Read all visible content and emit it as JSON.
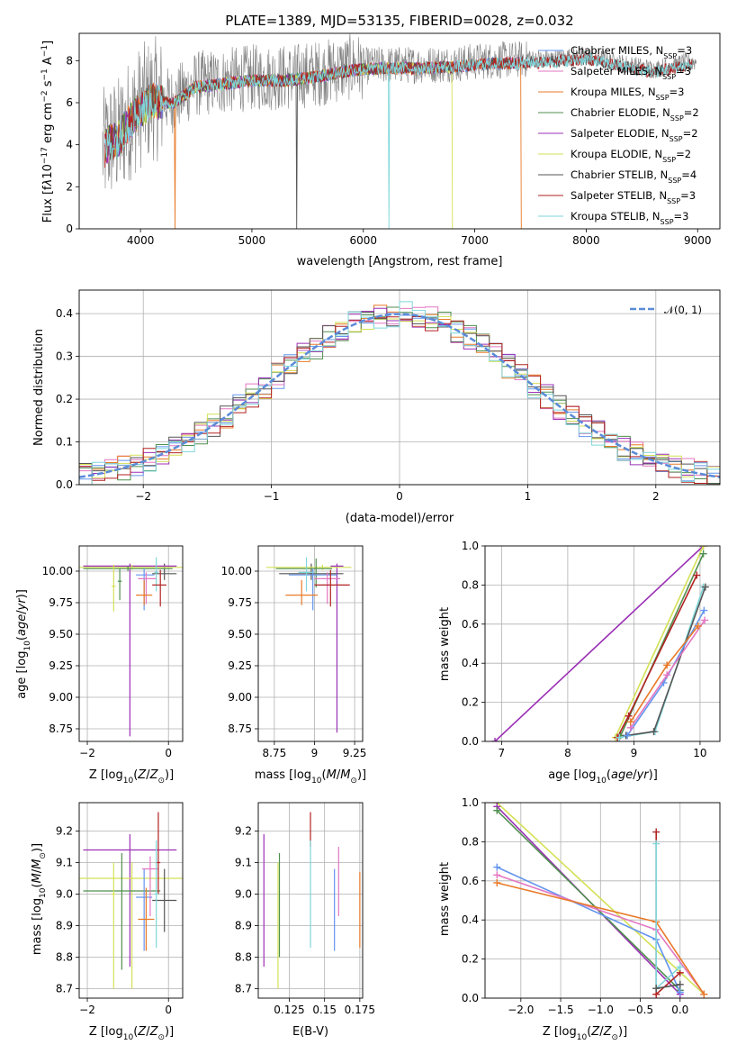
{
  "colors": {
    "chabrier_miles": "#6495ed",
    "salpeter_miles": "#e377c2",
    "kroupa_miles": "#e87a28",
    "chabrier_elodie": "#4f8f4f",
    "salpeter_elodie": "#9b30b5",
    "kroupa_elodie": "#d4e157",
    "chabrier_stelib": "#555555",
    "salpeter_stelib": "#b22222",
    "kroupa_stelib": "#7fd6da",
    "normal": "#5b8bd8",
    "data": "#808080"
  },
  "chart_data": [
    {
      "id": "spectrum",
      "type": "line",
      "title": "PLATE=1389, MJD=53135, FIBERID=0028, z=0.032",
      "xlabel": "wavelength [Angstrom, rest frame]",
      "ylabel": "Flux [f_λ 10^-17 erg cm^-2 s^-1 A^-1]",
      "xlim": [
        3450,
        9200
      ],
      "ylim": [
        0,
        9.3
      ],
      "xticks": [
        4000,
        5000,
        6000,
        7000,
        8000,
        9000
      ],
      "yticks": [
        0,
        2,
        4,
        6,
        8
      ],
      "grid": false,
      "legend_position": "top-right",
      "continuum": [
        [
          3650,
          3.6
        ],
        [
          3720,
          4.2
        ],
        [
          3800,
          4.3
        ],
        [
          3900,
          5.2
        ],
        [
          4000,
          5.8
        ],
        [
          4100,
          6.2
        ],
        [
          4300,
          6.1
        ],
        [
          4500,
          6.9
        ],
        [
          4700,
          7.0
        ],
        [
          5000,
          7.2
        ],
        [
          5300,
          7.2
        ],
        [
          5600,
          7.4
        ],
        [
          5900,
          7.7
        ],
        [
          6200,
          7.8
        ],
        [
          6500,
          7.8
        ],
        [
          6800,
          7.85
        ],
        [
          7100,
          8.0
        ],
        [
          7400,
          8.05
        ],
        [
          7700,
          8.1
        ],
        [
          8000,
          8.25
        ],
        [
          8300,
          7.9
        ],
        [
          8600,
          7.6
        ],
        [
          8800,
          7.8
        ],
        [
          8900,
          7.95
        ]
      ],
      "series": [
        {
          "key": "chabrier_miles",
          "legend": "Chabrier MILES, ",
          "nssp": "=3"
        },
        {
          "key": "salpeter_miles",
          "legend": "Salpeter MILES, ",
          "nssp": "=3"
        },
        {
          "key": "kroupa_miles",
          "legend": "Kroupa MILES, ",
          "nssp": "=3"
        },
        {
          "key": "chabrier_elodie",
          "legend": "Chabrier ELODIE, ",
          "nssp": "=2"
        },
        {
          "key": "salpeter_elodie",
          "legend": "Salpeter ELODIE, ",
          "nssp": "=2"
        },
        {
          "key": "kroupa_elodie",
          "legend": "Kroupa ELODIE, ",
          "nssp": "=2"
        },
        {
          "key": "chabrier_stelib",
          "legend": "Chabrier STELIB, ",
          "nssp": "=4"
        },
        {
          "key": "salpeter_stelib",
          "legend": "Salpeter STELIB, ",
          "nssp": "=3"
        },
        {
          "key": "kroupa_stelib",
          "legend": "Kroupa STELIB, ",
          "nssp": "=3"
        }
      ]
    },
    {
      "id": "residuals",
      "type": "line",
      "xlabel": "(data-model)/error",
      "ylabel": "Normed distribution",
      "xlim": [
        -2.5,
        2.5
      ],
      "ylim": [
        0,
        0.455
      ],
      "xticks": [
        -2,
        -1,
        0,
        1,
        2
      ],
      "yticks": [
        0.0,
        0.1,
        0.2,
        0.3,
        0.4
      ],
      "grid": true,
      "legend_position": "top-right",
      "legend_label": "𝒩(0, 1)",
      "bin_width": 0.1
    },
    {
      "id": "age_vs_Z",
      "type": "scatter",
      "xlabel": "Z [log10(Z/Z⊙)]",
      "ylabel": "age  [log10(age/yr)]",
      "xlim": [
        -2.2,
        0.35
      ],
      "ylim": [
        8.65,
        10.2
      ],
      "xticks": [
        -2,
        0
      ],
      "yticks": [
        8.75,
        9.0,
        9.25,
        9.5,
        9.75,
        10.0
      ],
      "points": [
        {
          "key": "chabrier_stelib",
          "x": -0.1,
          "y": 9.98,
          "xerr": [
            0.3,
            0.3
          ],
          "yerr": [
            0.05,
            0.08
          ]
        },
        {
          "key": "salpeter_elodie",
          "x": -0.95,
          "y": 10.04,
          "xerr": [
            1.15,
            1.15
          ],
          "yerr": [
            1.35,
            0.02
          ]
        },
        {
          "key": "kroupa_elodie",
          "x": -0.9,
          "y": 10.03,
          "xerr": [
            1.3,
            1.3
          ],
          "yerr": [
            0.02,
            0.02
          ]
        },
        {
          "key": "chabrier_elodie",
          "x": -1.0,
          "y": 10.02,
          "xerr": [
            1.1,
            1.1
          ],
          "yerr": [
            0.02,
            0.02
          ]
        },
        {
          "key": "kroupa_elodie",
          "x": -1.35,
          "y": 9.88,
          "xerr": [
            0.05,
            0.05
          ],
          "yerr": [
            0.2,
            0.17
          ]
        },
        {
          "key": "chabrier_elodie",
          "x": -1.2,
          "y": 9.92,
          "xerr": [
            0.05,
            0.05
          ],
          "yerr": [
            0.15,
            0.1
          ]
        },
        {
          "key": "chabrier_miles",
          "x": -0.6,
          "y": 9.97,
          "xerr": [
            0.2,
            0.25
          ],
          "yerr": [
            0.28,
            0.05
          ]
        },
        {
          "key": "salpeter_miles",
          "x": -0.55,
          "y": 9.94,
          "xerr": [
            0.2,
            0.25
          ],
          "yerr": [
            0.2,
            0.05
          ]
        },
        {
          "key": "kroupa_miles",
          "x": -0.6,
          "y": 9.81,
          "xerr": [
            0.2,
            0.2
          ],
          "yerr": [
            0.08,
            0.12
          ]
        },
        {
          "key": "kroupa_stelib",
          "x": -0.3,
          "y": 9.99,
          "xerr": [
            0.05,
            0.05
          ],
          "yerr": [
            0.15,
            0.12
          ]
        },
        {
          "key": "salpeter_stelib",
          "x": -0.2,
          "y": 9.89,
          "xerr": [
            0.2,
            0.15
          ],
          "yerr": [
            0.17,
            0.12
          ]
        }
      ]
    },
    {
      "id": "age_vs_mass",
      "type": "scatter",
      "xlabel": "mass [log10(M/M⊙)]",
      "xlim": [
        8.65,
        9.3
      ],
      "ylim": [
        8.65,
        10.2
      ],
      "xticks": [
        8.75,
        9.0,
        9.25
      ],
      "yticks": [
        8.75,
        9.0,
        9.25,
        9.5,
        9.75,
        10.0
      ],
      "points": [
        {
          "key": "chabrier_stelib",
          "x": 8.98,
          "y": 9.98,
          "xerr": [
            0.2,
            0.2
          ],
          "yerr": [
            0.05,
            0.08
          ]
        },
        {
          "key": "salpeter_elodie",
          "x": 9.14,
          "y": 10.04,
          "xerr": [
            0.04,
            0.04
          ],
          "yerr": [
            1.32,
            0.02
          ]
        },
        {
          "key": "kroupa_elodie",
          "x": 9.05,
          "y": 10.03,
          "xerr": [
            0.35,
            0.18
          ],
          "yerr": [
            0.02,
            0.02
          ]
        },
        {
          "key": "chabrier_elodie",
          "x": 9.01,
          "y": 10.02,
          "xerr": [
            0.25,
            0.1
          ],
          "yerr": [
            0.15,
            0.08
          ]
        },
        {
          "key": "chabrier_miles",
          "x": 8.99,
          "y": 9.97,
          "xerr": [
            0.15,
            0.15
          ],
          "yerr": [
            0.28,
            0.05
          ]
        },
        {
          "key": "salpeter_miles",
          "x": 9.08,
          "y": 9.94,
          "xerr": [
            0.08,
            0.08
          ],
          "yerr": [
            0.2,
            0.05
          ]
        },
        {
          "key": "kroupa_miles",
          "x": 8.92,
          "y": 9.81,
          "xerr": [
            0.1,
            0.1
          ],
          "yerr": [
            0.08,
            0.12
          ]
        },
        {
          "key": "kroupa_stelib",
          "x": 8.95,
          "y": 9.99,
          "xerr": [
            0.05,
            0.05
          ],
          "yerr": [
            0.15,
            0.12
          ]
        },
        {
          "key": "salpeter_stelib",
          "x": 9.1,
          "y": 9.89,
          "xerr": [
            0.1,
            0.12
          ],
          "yerr": [
            0.17,
            0.12
          ]
        }
      ]
    },
    {
      "id": "weight_vs_age",
      "type": "line",
      "xlabel": "age  [log10(age/yr)]",
      "ylabel": "mass weight",
      "xlim": [
        6.75,
        10.3
      ],
      "ylim": [
        0,
        1
      ],
      "xticks": [
        7,
        8,
        9,
        10
      ],
      "yticks": [
        0.0,
        0.2,
        0.4,
        0.6,
        0.8,
        1.0
      ],
      "grid": true,
      "series": [
        {
          "key": "salpeter_elodie",
          "points": [
            [
              6.9,
              0.0
            ],
            [
              10.05,
              1.0
            ]
          ]
        },
        {
          "key": "kroupa_elodie",
          "points": [
            [
              8.72,
              0.02
            ],
            [
              10.05,
              1.0
            ]
          ]
        },
        {
          "key": "chabrier_elodie",
          "points": [
            [
              8.8,
              0.03
            ],
            [
              10.05,
              0.96
            ]
          ]
        },
        {
          "key": "salpeter_stelib",
          "points": [
            [
              8.75,
              0.02
            ],
            [
              8.92,
              0.13
            ],
            [
              9.95,
              0.85
            ]
          ]
        },
        {
          "key": "kroupa_stelib",
          "points": [
            [
              8.78,
              0.02
            ],
            [
              9.32,
              0.05
            ],
            [
              10.05,
              0.79
            ]
          ]
        },
        {
          "key": "chabrier_stelib",
          "points": [
            [
              8.88,
              0.03
            ],
            [
              9.3,
              0.05
            ],
            [
              10.08,
              0.79
            ]
          ]
        },
        {
          "key": "chabrier_miles",
          "points": [
            [
              8.9,
              0.03
            ],
            [
              9.45,
              0.3
            ],
            [
              10.06,
              0.67
            ]
          ]
        },
        {
          "key": "salpeter_miles",
          "points": [
            [
              8.95,
              0.07
            ],
            [
              9.5,
              0.34
            ],
            [
              10.07,
              0.62
            ]
          ]
        },
        {
          "key": "kroupa_miles",
          "points": [
            [
              8.95,
              0.1
            ],
            [
              9.5,
              0.39
            ],
            [
              9.97,
              0.59
            ]
          ]
        }
      ]
    },
    {
      "id": "mass_vs_Z",
      "type": "scatter",
      "xlabel": "Z [log10(Z/Z⊙)]",
      "ylabel": "mass [log10(M/M⊙)]",
      "xlim": [
        -2.2,
        0.35
      ],
      "ylim": [
        8.67,
        9.29
      ],
      "xticks": [
        -2,
        0
      ],
      "yticks": [
        8.7,
        8.8,
        8.9,
        9.0,
        9.1,
        9.2
      ],
      "points": [
        {
          "key": "salpeter_elodie",
          "x": -0.95,
          "y": 9.14,
          "xerr": [
            1.15,
            1.15
          ],
          "yerr": [
            0.37,
            0.05
          ]
        },
        {
          "key": "kroupa_elodie",
          "x": -0.9,
          "y": 9.05,
          "xerr": [
            1.3,
            1.3
          ],
          "yerr": [
            0.35,
            0.05
          ]
        },
        {
          "key": "chabrier_elodie",
          "x": -1.15,
          "y": 9.01,
          "xerr": [
            0.95,
            0.95
          ],
          "yerr": [
            0.25,
            0.12
          ]
        },
        {
          "key": "kroupa_elodie",
          "x": -1.35,
          "y": 9.0,
          "xerr": [
            0.05,
            0.05
          ],
          "yerr": [
            0.3,
            0.1
          ]
        },
        {
          "key": "chabrier_miles",
          "x": -0.6,
          "y": 8.99,
          "xerr": [
            0.2,
            0.2
          ],
          "yerr": [
            0.17,
            0.09
          ]
        },
        {
          "key": "salpeter_miles",
          "x": -0.45,
          "y": 9.08,
          "xerr": [
            0.2,
            0.2
          ],
          "yerr": [
            0.15,
            0.04
          ]
        },
        {
          "key": "kroupa_miles",
          "x": -0.55,
          "y": 8.92,
          "xerr": [
            0.2,
            0.2
          ],
          "yerr": [
            0.1,
            0.1
          ]
        },
        {
          "key": "chabrier_stelib",
          "x": -0.1,
          "y": 8.98,
          "xerr": [
            0.3,
            0.3
          ],
          "yerr": [
            0.1,
            0.1
          ]
        },
        {
          "key": "salpeter_stelib",
          "x": -0.25,
          "y": 9.1,
          "xerr": [
            0.05,
            0.05
          ],
          "yerr": [
            0.1,
            0.16
          ]
        },
        {
          "key": "kroupa_stelib",
          "x": -0.3,
          "y": 9.0,
          "xerr": [
            0.05,
            0.05
          ],
          "yerr": [
            0.17,
            0.17
          ]
        }
      ]
    },
    {
      "id": "mass_vs_ebv",
      "type": "scatter",
      "xlabel": "E(B-V)",
      "xlim": [
        0.103,
        0.177
      ],
      "ylim": [
        8.67,
        9.29
      ],
      "xticks": [
        0.125,
        0.15,
        0.175
      ],
      "yticks": [
        8.7,
        8.8,
        8.9,
        9.0,
        9.1,
        9.2
      ],
      "points": [
        {
          "key": "salpeter_elodie",
          "x": 0.107,
          "y": 9.0,
          "yerr": [
            0.23,
            0.19
          ]
        },
        {
          "key": "kroupa_elodie",
          "x": 0.117,
          "y": 8.9,
          "yerr": [
            0.2,
            0.2
          ]
        },
        {
          "key": "chabrier_elodie",
          "x": 0.118,
          "y": 8.95,
          "yerr": [
            0.15,
            0.18
          ]
        },
        {
          "key": "salpeter_stelib",
          "x": 0.14,
          "y": 9.18,
          "yerr": [
            0.03,
            0.08
          ]
        },
        {
          "key": "kroupa_stelib",
          "x": 0.14,
          "y": 9.0,
          "yerr": [
            0.17,
            0.17
          ]
        },
        {
          "key": "chabrier_miles",
          "x": 0.157,
          "y": 8.95,
          "yerr": [
            0.13,
            0.13
          ]
        },
        {
          "key": "salpeter_miles",
          "x": 0.16,
          "y": 9.05,
          "yerr": [
            0.12,
            0.1
          ]
        },
        {
          "key": "kroupa_miles",
          "x": 0.175,
          "y": 8.95,
          "yerr": [
            0.12,
            0.12
          ]
        }
      ]
    },
    {
      "id": "weight_vs_Z",
      "type": "line",
      "xlabel": "Z [log10(Z/Z⊙)]",
      "ylabel": "mass weight",
      "xlim": [
        -2.45,
        0.5
      ],
      "ylim": [
        0,
        1
      ],
      "xticks": [
        -2.0,
        -1.5,
        -1.0,
        -0.5,
        0.0
      ],
      "yticks": [
        0.0,
        0.2,
        0.4,
        0.6,
        0.8,
        1.0
      ],
      "grid": true,
      "series": [
        {
          "key": "kroupa_elodie",
          "points": [
            [
              -2.3,
              1.0
            ],
            [
              0.3,
              0.02
            ]
          ]
        },
        {
          "key": "salpeter_elodie",
          "points": [
            [
              -2.3,
              0.98
            ],
            [
              0.0,
              0.02
            ]
          ]
        },
        {
          "key": "chabrier_elodie",
          "points": [
            [
              -2.3,
              0.96
            ],
            [
              0.0,
              0.04
            ]
          ]
        },
        {
          "key": "chabrier_miles",
          "points": [
            [
              -2.3,
              0.67
            ],
            [
              -0.3,
              0.3
            ],
            [
              0.0,
              0.03
            ]
          ]
        },
        {
          "key": "salpeter_miles",
          "points": [
            [
              -2.3,
              0.63
            ],
            [
              -0.3,
              0.35
            ],
            [
              0.3,
              0.02
            ]
          ]
        },
        {
          "key": "kroupa_miles",
          "points": [
            [
              -2.3,
              0.59
            ],
            [
              -0.3,
              0.39
            ],
            [
              0.3,
              0.02
            ]
          ]
        },
        {
          "key": "salpeter_stelib",
          "points": [
            [
              -0.3,
              0.85
            ],
            [
              -0.3,
              0.02
            ],
            [
              0.0,
              0.13
            ]
          ]
        },
        {
          "key": "kroupa_stelib",
          "points": [
            [
              -0.3,
              0.79
            ],
            [
              -0.3,
              0.05
            ],
            [
              0.0,
              0.16
            ]
          ]
        },
        {
          "key": "chabrier_stelib",
          "points": [
            [
              -0.3,
              0.05
            ],
            [
              0.0,
              0.07
            ]
          ]
        }
      ]
    }
  ]
}
